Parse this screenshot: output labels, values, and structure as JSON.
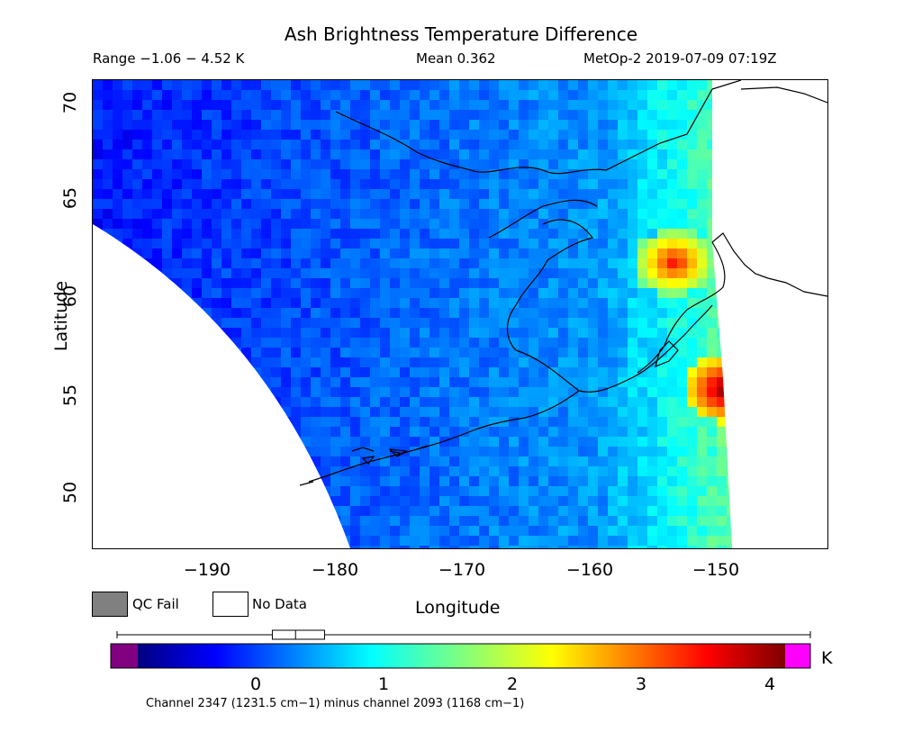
{
  "title": "Ash Brightness Temperature Difference",
  "header": {
    "range": "Range −1.06 − 4.52 K",
    "mean": "Mean 0.362",
    "satellite_time": "MetOp-2 2019-07-09 07:19Z"
  },
  "axes": {
    "y_label": "Latitude",
    "x_label": "Longitude",
    "y_ticks": [
      "70",
      "65",
      "60",
      "55",
      "50"
    ],
    "x_ticks": [
      "−190",
      "−180",
      "−170",
      "−160",
      "−150"
    ],
    "lat_range": [
      46.7,
      71.0
    ],
    "lon_range": [
      -199.5,
      -141.5
    ]
  },
  "legend": {
    "qc_fail_label": "QC Fail",
    "no_data_label": "No Data",
    "qc_fail_color": "#808080",
    "no_data_color": "#ffffff"
  },
  "colorbar": {
    "units": "K",
    "ticks": [
      "0",
      "1",
      "2",
      "3",
      "4"
    ],
    "range": [
      -1.06,
      4.52
    ],
    "under_color": "#800080",
    "over_color": "#ff00ff",
    "caption": "Channel 2347 (1231.5 cm−1) minus channel 2093 (1168 cm−1)",
    "boxplot": {
      "q1": 0.1,
      "median": 0.3,
      "q3": 0.55,
      "min": -1.06,
      "max": 4.52
    }
  },
  "map_data": {
    "swath_mean_value": 0.362,
    "ash_plume_hotspots": [
      {
        "lat": 61.8,
        "lon": -154.0,
        "value": 3.8
      },
      {
        "lat": 55.2,
        "lon": -150.0,
        "value": 4.5
      }
    ]
  }
}
